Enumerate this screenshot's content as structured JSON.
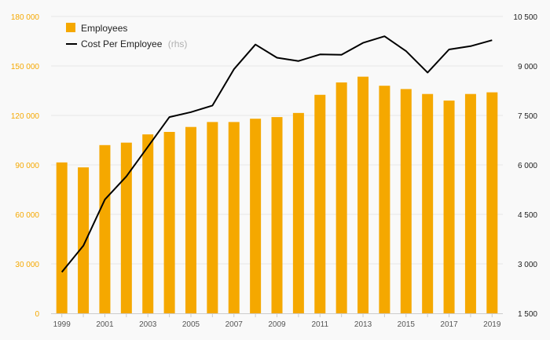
{
  "chart_data": {
    "type": "bar",
    "categories": [
      "1999",
      "2000",
      "2001",
      "2002",
      "2003",
      "2004",
      "2005",
      "2006",
      "2007",
      "2008",
      "2009",
      "2010",
      "2011",
      "2012",
      "2013",
      "2014",
      "2015",
      "2016",
      "2017",
      "2018",
      "2019"
    ],
    "x_tick_labels": [
      "1999",
      "2001",
      "2003",
      "2005",
      "2007",
      "2009",
      "2011",
      "2013",
      "2015",
      "2017",
      "2019"
    ],
    "series": [
      {
        "name": "Employees",
        "type": "bar",
        "axis": "left",
        "color": "#f5a800",
        "values": [
          91500,
          88500,
          102000,
          103500,
          108500,
          110000,
          113000,
          116000,
          116000,
          118000,
          119000,
          121500,
          132500,
          140000,
          143500,
          138000,
          136000,
          133000,
          129000,
          133000,
          134000
        ]
      },
      {
        "name": "Cost Per Employee",
        "legend_suffix": "(rhs)",
        "type": "line",
        "axis": "right",
        "color": "#000000",
        "values": [
          2750,
          3550,
          4950,
          5650,
          6550,
          7450,
          7600,
          7800,
          8900,
          9650,
          9250,
          9150,
          9350,
          9340,
          9700,
          9900,
          9450,
          8800,
          9500,
          9600,
          9780
        ]
      }
    ],
    "left_axis": {
      "ylim": [
        0,
        180000
      ],
      "ticks": [
        0,
        30000,
        60000,
        90000,
        120000,
        150000,
        180000
      ],
      "tick_labels": [
        "0",
        "30 000",
        "60 000",
        "90 000",
        "120 000",
        "150 000",
        "180 000"
      ],
      "color": "#f5a800"
    },
    "right_axis": {
      "ylim": [
        1500,
        10500
      ],
      "ticks": [
        1500,
        3000,
        4500,
        6000,
        7500,
        9000,
        10500
      ],
      "tick_labels": [
        "1 500",
        "3 000",
        "4 500",
        "6 000",
        "7 500",
        "9 000",
        "10 500"
      ],
      "color": "#222222"
    },
    "grid": true,
    "legend_position": "top-left"
  }
}
